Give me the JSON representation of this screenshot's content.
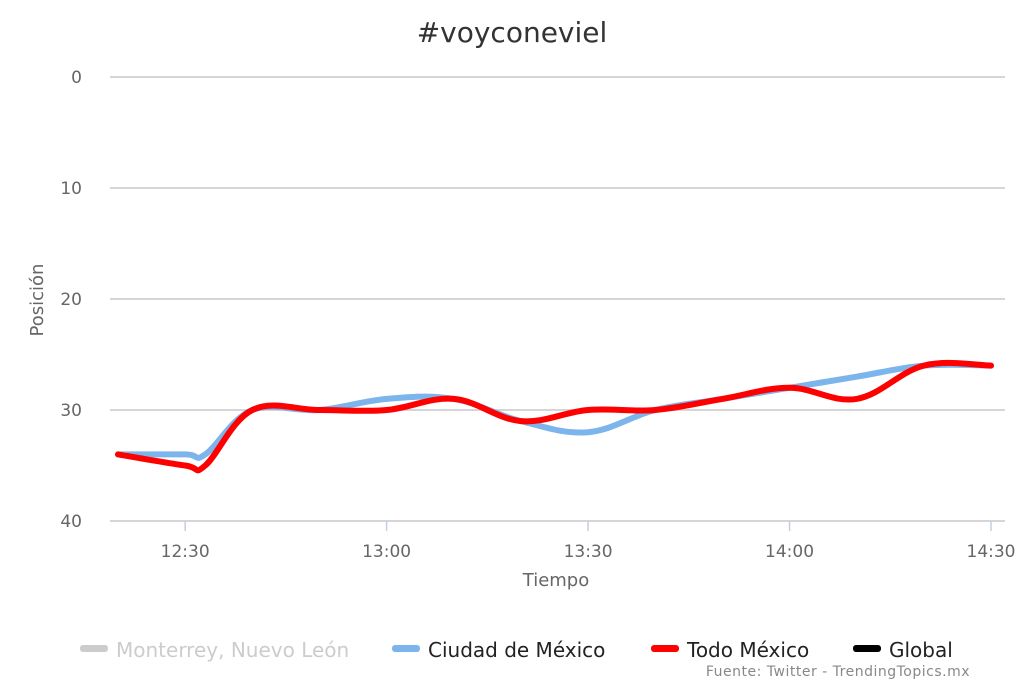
{
  "chart_data": {
    "type": "line",
    "title": "#voyconeviel",
    "xlabel": "Tiempo",
    "ylabel": "Posición",
    "y_reversed": true,
    "ylim": [
      0,
      40
    ],
    "y_ticks": [
      "0",
      "10",
      "20",
      "30",
      "40"
    ],
    "x_ticks": [
      "12:30",
      "13:00",
      "13:30",
      "14:00",
      "14:30"
    ],
    "xlim": [
      "12:20",
      "14:30"
    ],
    "grid": true,
    "legend_position": "bottom",
    "series": [
      {
        "name": "Monterrey, Nuevo León",
        "color": "#cccccc",
        "visible": false,
        "points": []
      },
      {
        "name": "Ciudad de México",
        "color": "#7cb5ec",
        "visible": true,
        "points": [
          [
            "12:20",
            34
          ],
          [
            "12:30",
            34
          ],
          [
            "12:33",
            34
          ],
          [
            "12:40",
            30
          ],
          [
            "12:50",
            30
          ],
          [
            "13:00",
            29
          ],
          [
            "13:10",
            29
          ],
          [
            "13:20",
            31
          ],
          [
            "13:30",
            32
          ],
          [
            "13:40",
            30
          ],
          [
            "13:50",
            29
          ],
          [
            "14:00",
            28
          ],
          [
            "14:10",
            27
          ],
          [
            "14:20",
            26
          ],
          [
            "14:30",
            26
          ]
        ]
      },
      {
        "name": "Todo México",
        "color": "#ff0000",
        "visible": true,
        "points": [
          [
            "12:20",
            34
          ],
          [
            "12:30",
            35
          ],
          [
            "12:33",
            35
          ],
          [
            "12:40",
            30
          ],
          [
            "12:50",
            30
          ],
          [
            "13:00",
            30
          ],
          [
            "13:10",
            29
          ],
          [
            "13:20",
            31
          ],
          [
            "13:30",
            30
          ],
          [
            "13:40",
            30
          ],
          [
            "13:50",
            29
          ],
          [
            "14:00",
            28
          ],
          [
            "14:10",
            29
          ],
          [
            "14:20",
            26
          ],
          [
            "14:30",
            26
          ]
        ]
      },
      {
        "name": "Global",
        "color": "#000000",
        "visible": true,
        "points": []
      }
    ],
    "credit": "Fuente: Twitter - TrendingTopics.mx"
  }
}
